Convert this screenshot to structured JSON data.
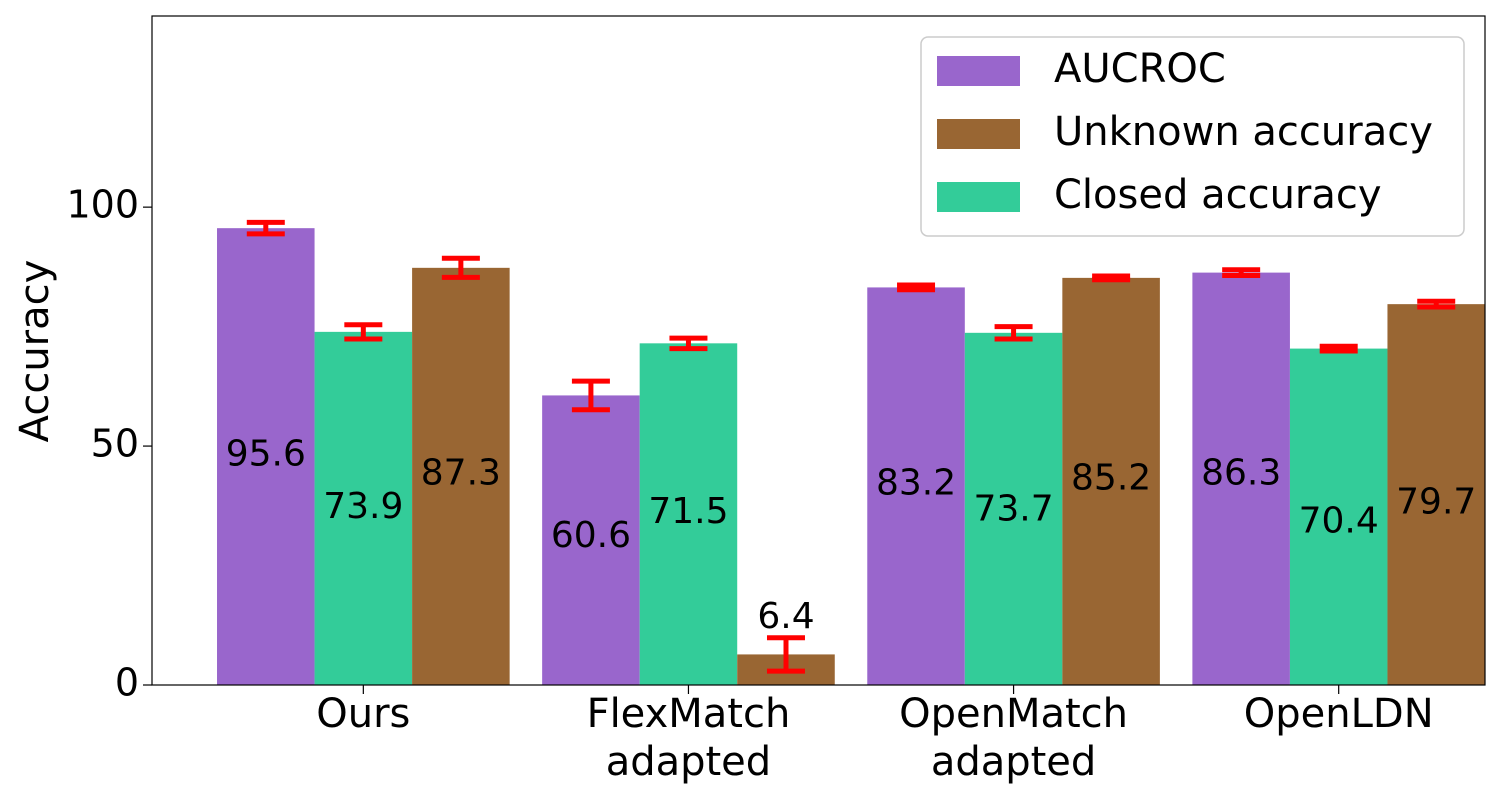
{
  "chart_data": {
    "type": "bar",
    "title": "",
    "xlabel": "",
    "ylabel": "Accuracy",
    "ylim": [
      0,
      140
    ],
    "yticks": [
      0,
      50,
      100
    ],
    "grid": false,
    "legend_position": "top-right",
    "categories": [
      [
        "Ours"
      ],
      [
        "FlexMatch",
        "adapted"
      ],
      [
        "OpenMatch",
        "adapted"
      ],
      [
        "OpenLDN"
      ]
    ],
    "series": [
      {
        "name": "AUCROC",
        "color": "#9966cc",
        "values": [
          95.6,
          60.6,
          83.2,
          86.3
        ],
        "errors": [
          1.2,
          3.0,
          0.5,
          0.6
        ],
        "value_labels": [
          "95.6",
          "60.6",
          "83.2",
          "86.3"
        ],
        "label_y": [
          48,
          31,
          42,
          44
        ]
      },
      {
        "name": "Closed accuracy",
        "color": "#33cc99",
        "values": [
          73.9,
          71.5,
          73.7,
          70.4
        ],
        "errors": [
          1.5,
          1.1,
          1.3,
          0.5
        ],
        "value_labels": [
          "73.9",
          "71.5",
          "73.7",
          "70.4"
        ],
        "label_y": [
          37,
          36,
          36.5,
          34
        ]
      },
      {
        "name": "Unknown accuracy",
        "color": "#996633",
        "values": [
          87.3,
          6.4,
          85.2,
          79.7
        ],
        "errors": [
          2.0,
          3.5,
          0.4,
          0.6
        ],
        "value_labels": [
          "87.3",
          "6.4",
          "85.2",
          "79.7"
        ],
        "label_y": [
          44,
          14,
          43,
          38
        ]
      }
    ],
    "legend_order": [
      "AUCROC",
      "Unknown accuracy",
      "Closed accuracy"
    ],
    "error_color": "#ff0000"
  }
}
